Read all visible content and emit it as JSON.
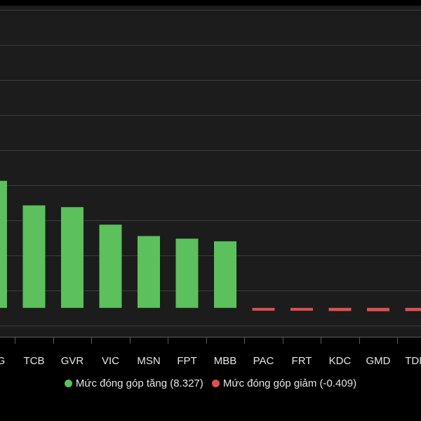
{
  "chart_data": {
    "type": "bar",
    "categories": [
      "…G",
      "TCB",
      "GVR",
      "VIC",
      "MSN",
      "FPT",
      "MBB",
      "PAC",
      "FRT",
      "KDC",
      "GMD",
      "TDM"
    ],
    "series": [
      {
        "name": "Mức đóng góp tăng (8.327)",
        "color": "#5cc05c",
        "values": [
          1.45,
          1.17,
          1.15,
          0.95,
          0.82,
          0.79,
          0.76,
          null,
          null,
          null,
          null,
          null
        ]
      },
      {
        "name": "Mức đóng góp giảm (-0.409)",
        "color": "#e05050",
        "values": [
          null,
          null,
          null,
          null,
          null,
          null,
          null,
          -0.022,
          -0.024,
          -0.036,
          -0.038,
          -0.036
        ]
      }
    ],
    "ylim": [
      -0.33,
      3.45
    ],
    "grid": true,
    "legend_position": "bottom",
    "xlabel": "",
    "ylabel": ""
  }
}
